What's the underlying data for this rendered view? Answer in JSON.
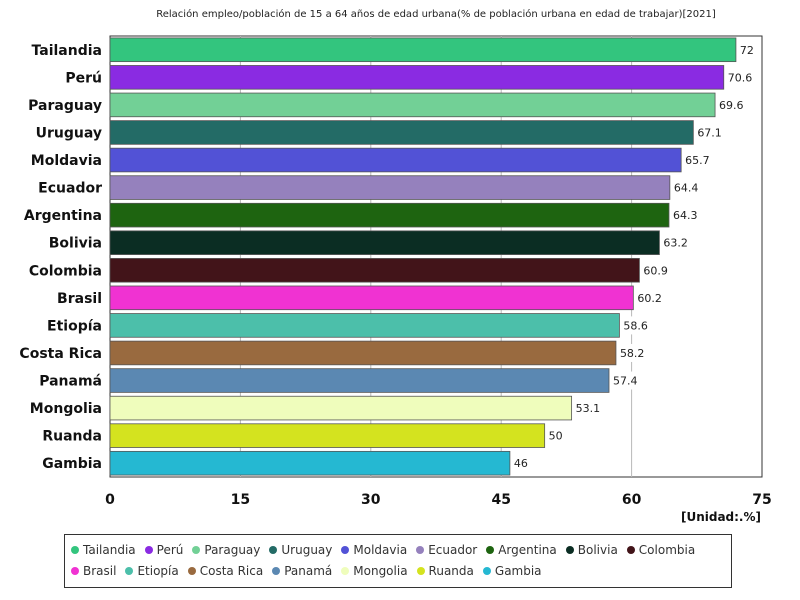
{
  "chart_data": {
    "type": "bar",
    "orientation": "horizontal",
    "title": "Relación empleo/población de 15 a 64 años de edad urbana(% de población urbana en edad de trabajar)[2021]",
    "unit_label": "[Unidad:.%]",
    "categories": [
      "Tailandia",
      "Perú",
      "Paraguay",
      "Uruguay",
      "Moldavia",
      "Ecuador",
      "Argentina",
      "Bolivia",
      "Colombia",
      "Brasil",
      "Etiopía",
      "Costa Rica",
      "Panamá",
      "Mongolia",
      "Ruanda",
      "Gambia"
    ],
    "values": [
      72,
      70.6,
      69.6,
      67.1,
      65.7,
      64.4,
      64.3,
      63.2,
      60.9,
      60.2,
      58.6,
      58.2,
      57.4,
      53.1,
      50,
      46
    ],
    "value_labels": [
      "72",
      "70.6",
      "69.6",
      "67.1",
      "65.7",
      "64.4",
      "64.3",
      "63.2",
      "60.9",
      "60.2",
      "58.6",
      "58.2",
      "57.4",
      "53.1",
      "50",
      "46"
    ],
    "colors": [
      "#33c57e",
      "#8a2be2",
      "#72d096",
      "#236b66",
      "#5252d6",
      "#9581bd",
      "#1e6410",
      "#0b2d23",
      "#421419",
      "#f032d2",
      "#4cbfaa",
      "#996a3f",
      "#5b88b2",
      "#effdbc",
      "#d4e31f",
      "#25b8d2"
    ],
    "xlim": [
      0,
      75
    ],
    "x_ticks": [
      0,
      15,
      30,
      45,
      60,
      75
    ],
    "x_tick_labels": [
      "0",
      "15",
      "30",
      "45",
      "60",
      "75"
    ],
    "grid": "vertical",
    "legend": {
      "position": "bottom",
      "entries": [
        "Tailandia",
        "Perú",
        "Paraguay",
        "Uruguay",
        "Moldavia",
        "Ecuador",
        "Argentina",
        "Bolivia",
        "Colombia",
        "Brasil",
        "Etiopía",
        "Costa Rica",
        "Panamá",
        "Mongolia",
        "Ruanda",
        "Gambia"
      ]
    }
  }
}
